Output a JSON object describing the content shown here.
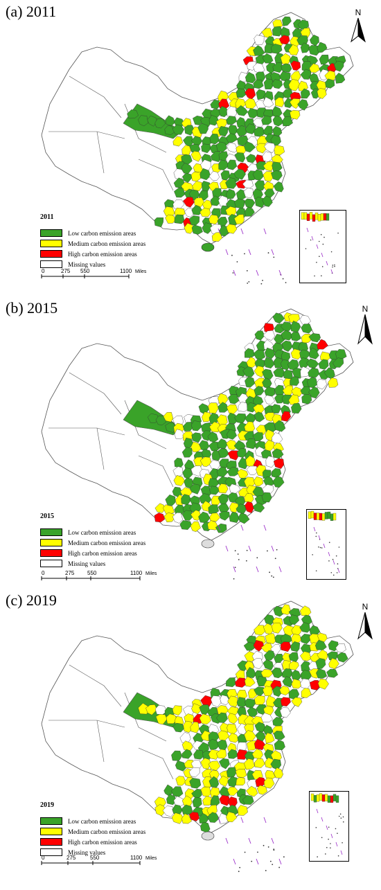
{
  "colors": {
    "low": "#3aa329",
    "medium": "#ffff00",
    "high": "#ff0000",
    "missing": "#ffffff",
    "border": "#555555",
    "island": "#9b2ec9"
  },
  "legend": {
    "low_label": "Low carbon emission areas",
    "medium_label": "Medium carbon emission areas",
    "high_label": "High carbon emission areas",
    "missing_label": "Missing values"
  },
  "scale": {
    "ticks": [
      "0",
      "275",
      "550",
      "1100"
    ],
    "unit": "Miles"
  },
  "north_label": "N",
  "panels": [
    {
      "title": "(a) 2011",
      "year": "2011",
      "dominant": "low",
      "high_level": 0.9
    },
    {
      "title": "(b) 2015",
      "year": "2015",
      "dominant": "low",
      "high_level": 0.4
    },
    {
      "title": "(c) 2019",
      "year": "2019",
      "dominant": "medium",
      "high_level": 0.6
    }
  ]
}
